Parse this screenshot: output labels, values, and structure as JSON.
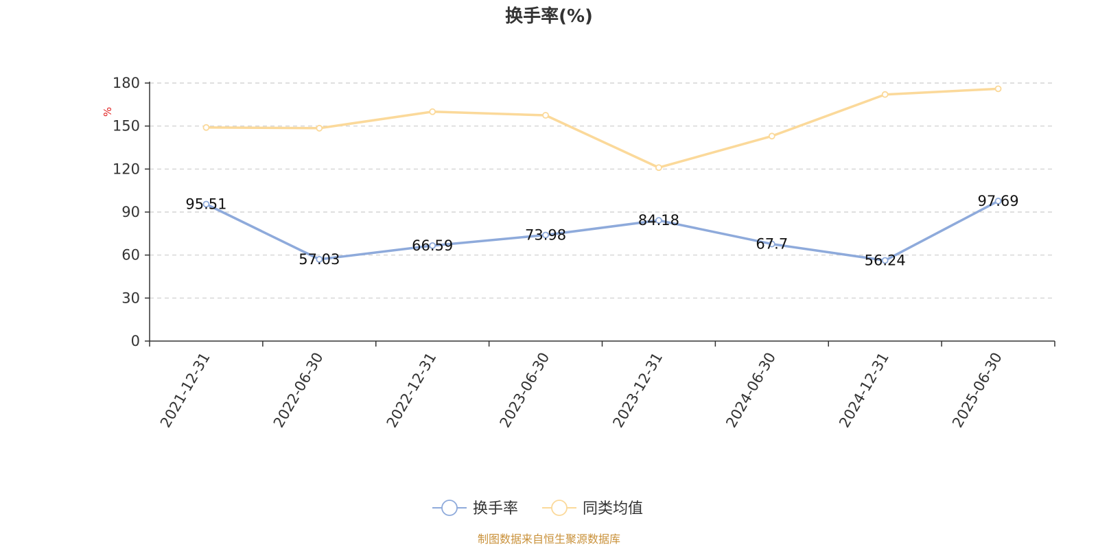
{
  "chart_data": {
    "type": "line",
    "title": "换手率(%)",
    "ylabel": "%",
    "ylim": [
      0,
      180
    ],
    "yticks": [
      0,
      30,
      60,
      90,
      120,
      150,
      180
    ],
    "grid": true,
    "legend_position": "bottom-center",
    "categories": [
      "2021-12-31",
      "2022-06-30",
      "2022-12-31",
      "2023-06-30",
      "2023-12-31",
      "2024-06-30",
      "2024-12-31",
      "2025-06-30"
    ],
    "series": [
      {
        "name": "换手率",
        "color": "#8eaadb",
        "values": [
          95.51,
          57.03,
          66.59,
          73.98,
          84.18,
          67.7,
          56.24,
          97.69
        ],
        "labels": [
          "95.51",
          "57.03",
          "66.59",
          "73.98",
          "84.18",
          "67.7",
          "56.24",
          "97.69"
        ],
        "show_labels": true
      },
      {
        "name": "同类均值",
        "color": "#fbd99a",
        "values": [
          149,
          148.5,
          160,
          157.5,
          121,
          143,
          172,
          176
        ],
        "show_labels": false
      }
    ],
    "source": "制图数据来自恒生聚源数据库",
    "source_color": "#c9913a",
    "unit_color": "#e02020",
    "axis_color": "#333333",
    "grid_color": "#cccccc"
  }
}
